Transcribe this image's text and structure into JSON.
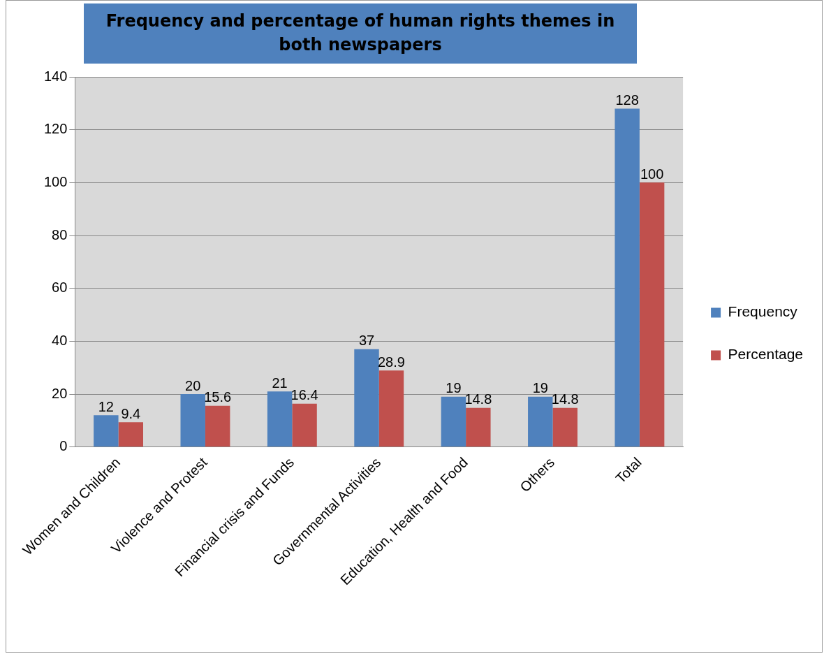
{
  "chart_data": {
    "type": "bar",
    "title": "Frequency and percentage of human rights themes in both newspapers",
    "categories": [
      "Women and Children",
      "Violence and Protest",
      "Financial crisis and Funds",
      "Governmental Activities",
      "Education, Health and Food",
      "Others",
      "Total"
    ],
    "series": [
      {
        "name": "Frequency",
        "color": "#4f81bd",
        "values": [
          12,
          20,
          21,
          37,
          19,
          19,
          128
        ]
      },
      {
        "name": "Percentage",
        "color": "#c0504d",
        "values": [
          9.4,
          15.6,
          16.4,
          28.9,
          14.8,
          14.8,
          100
        ]
      }
    ],
    "ylim": [
      0,
      140
    ],
    "yticks": [
      0,
      20,
      40,
      60,
      80,
      100,
      120,
      140
    ],
    "grid": "y",
    "legend": "right",
    "data_labels": true
  }
}
